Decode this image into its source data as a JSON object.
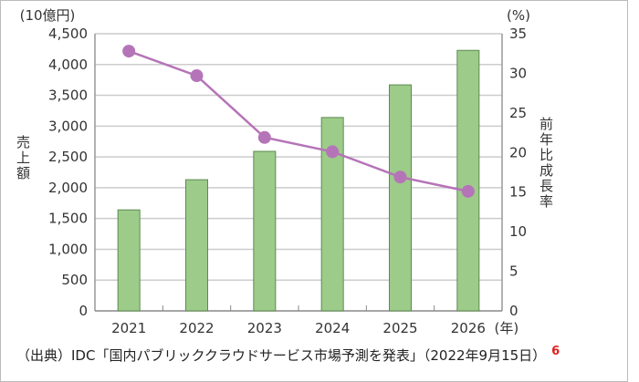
{
  "chart_data": {
    "type": "bar+line",
    "categories": [
      "2021",
      "2022",
      "2023",
      "2024",
      "2025",
      "2026"
    ],
    "x_unit": "(年)",
    "left_axis": {
      "label": "売上額",
      "unit": "(10億円)",
      "range": [
        0,
        4500
      ],
      "ticks": [
        "0",
        "500",
        "1,000",
        "1,500",
        "2,000",
        "2,500",
        "3,000",
        "3,500",
        "4,000",
        "4,500"
      ],
      "tick_values": [
        0,
        500,
        1000,
        1500,
        2000,
        2500,
        3000,
        3500,
        4000,
        4500
      ]
    },
    "right_axis": {
      "label": "前年比成長率",
      "unit": "(%)",
      "range": [
        0,
        35
      ],
      "ticks": [
        "0",
        "5",
        "10",
        "15",
        "20",
        "25",
        "30",
        "35"
      ],
      "tick_values": [
        0,
        5,
        10,
        15,
        20,
        25,
        30,
        35
      ]
    },
    "series": [
      {
        "type": "bar",
        "axis": "left",
        "values": [
          1640,
          2130,
          2590,
          3140,
          3670,
          4230
        ],
        "color": "#9dcb89"
      },
      {
        "type": "line",
        "axis": "right",
        "values": [
          32.8,
          29.7,
          21.9,
          20.1,
          16.9,
          15.1
        ],
        "color": "#b574b8"
      }
    ],
    "grid": true
  },
  "source": {
    "text": "（出典）IDC「国内パブリッククラウドサービス市場予測を発表」（2022年9月15日）",
    "note": "6"
  }
}
